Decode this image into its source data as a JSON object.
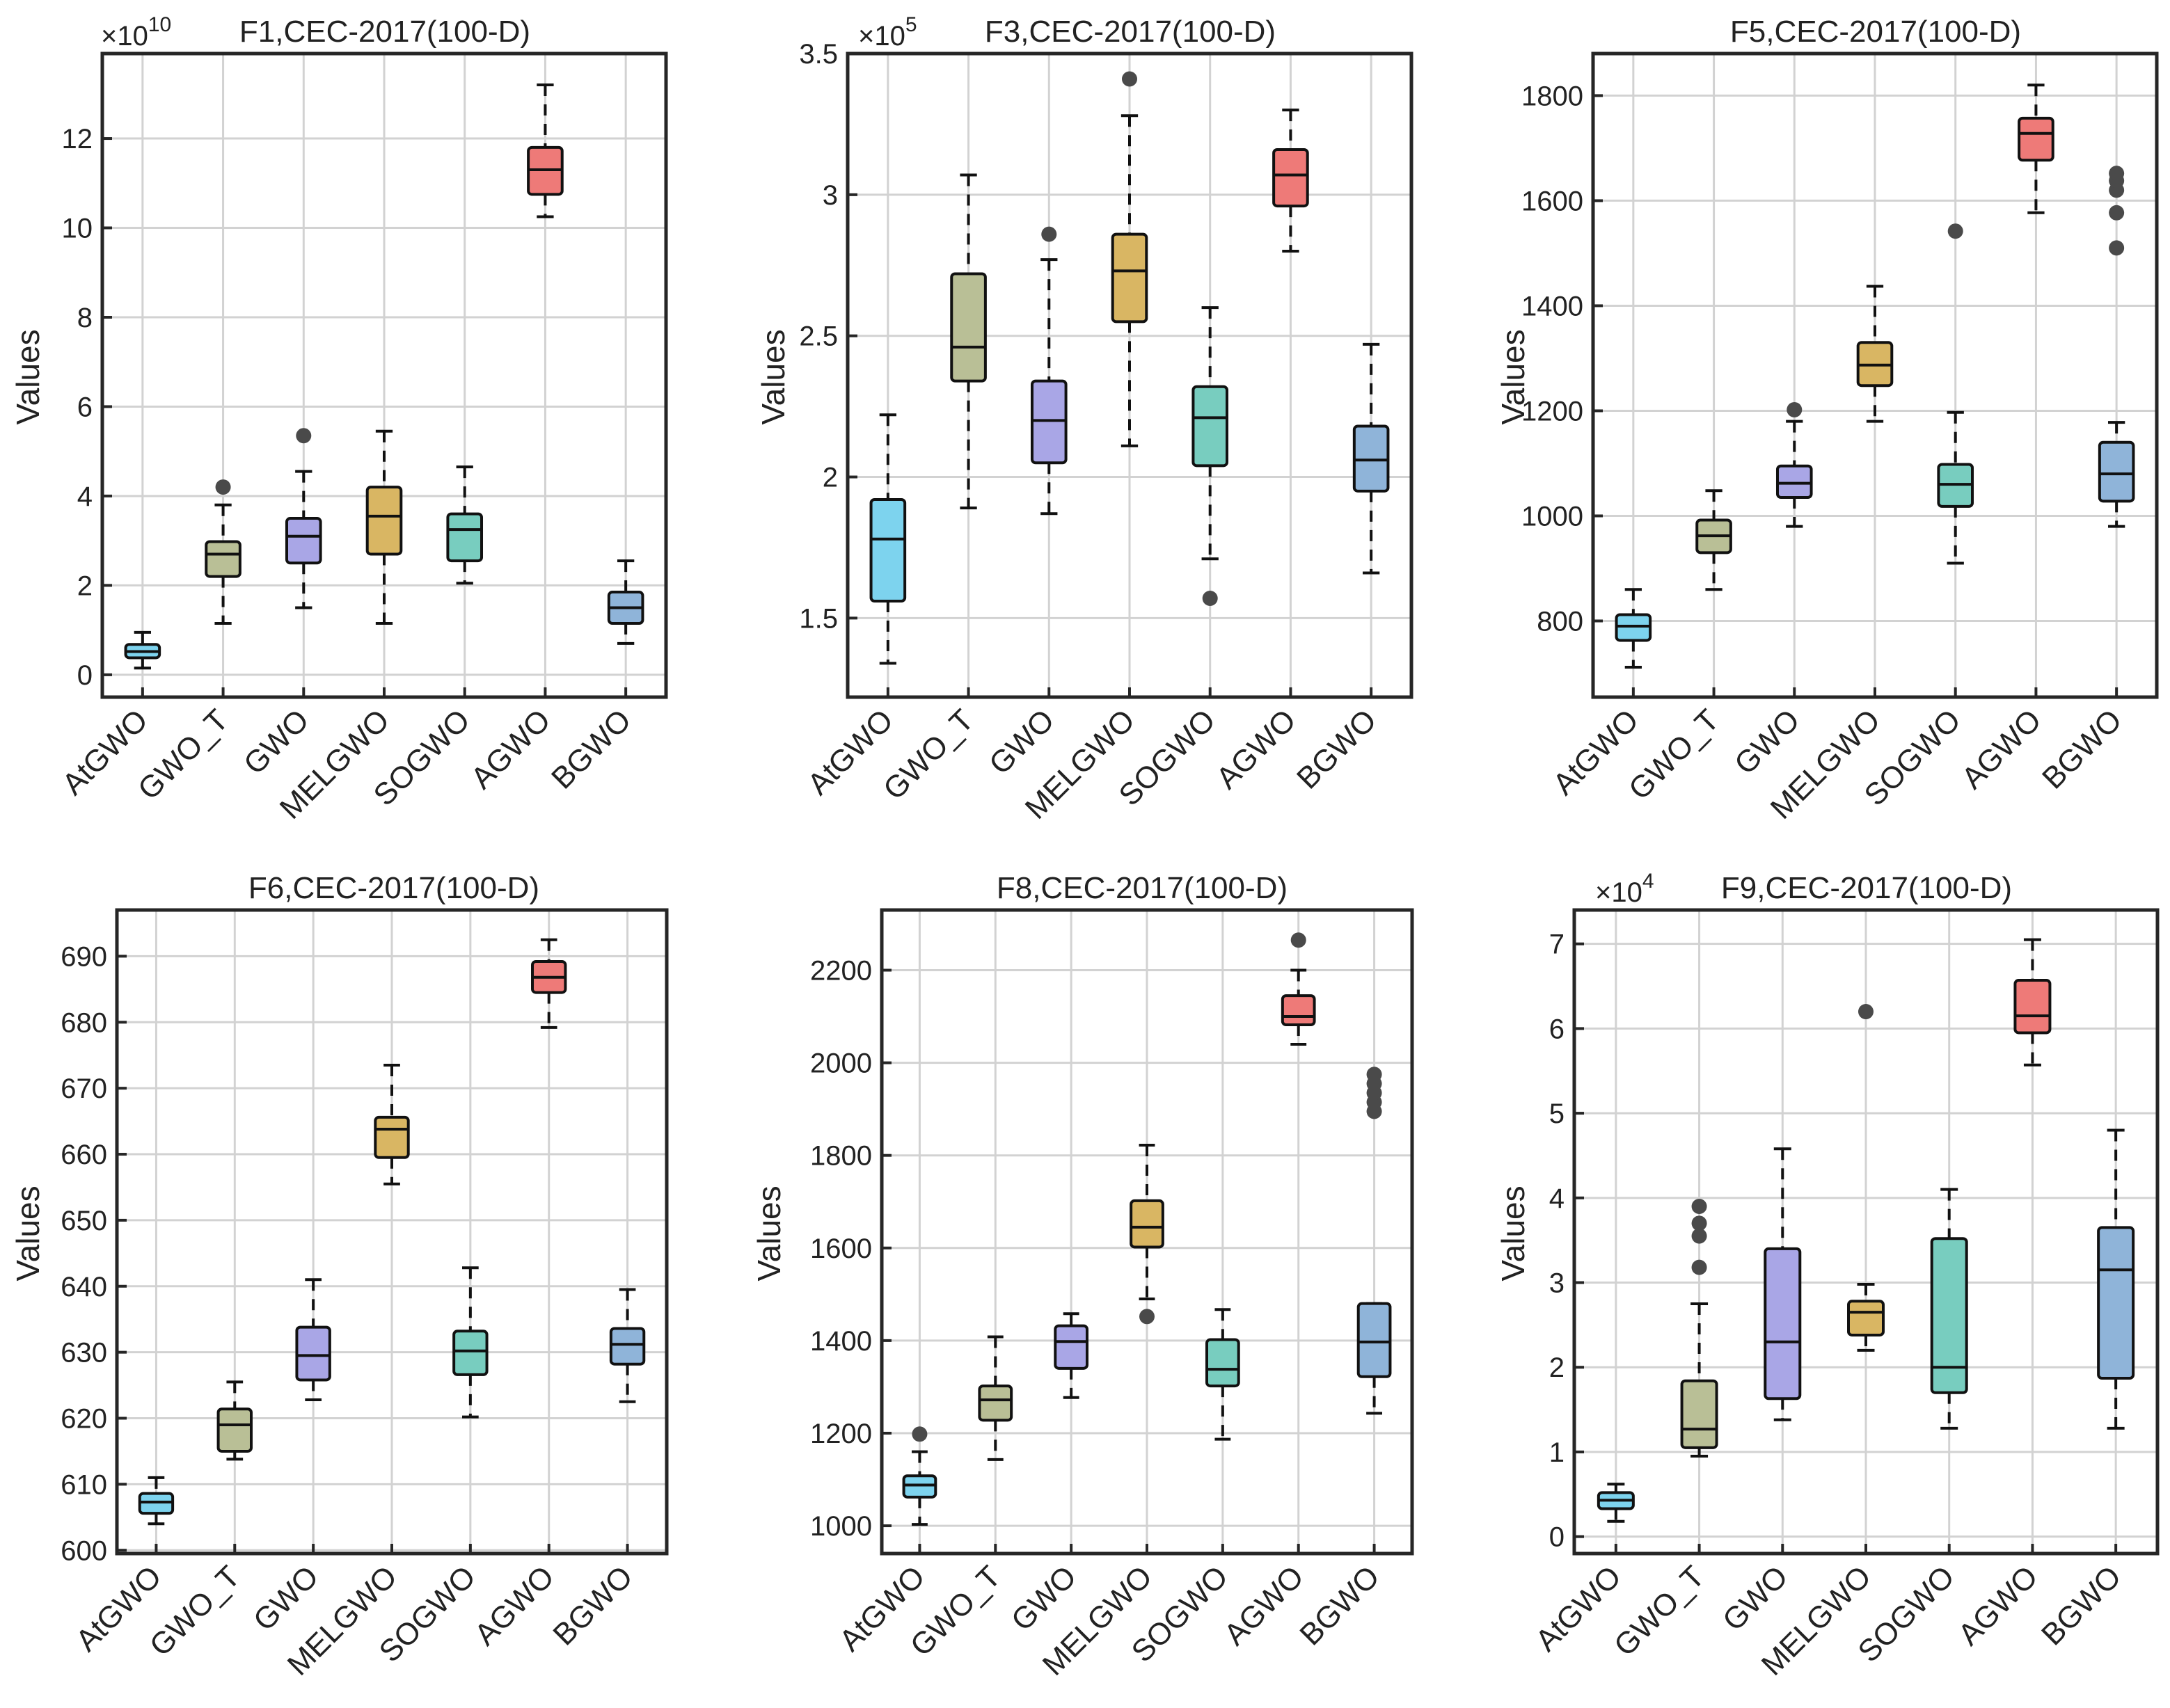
{
  "figure": {
    "categories": [
      "AtGWO",
      "GWO_T",
      "GWO",
      "MELGWO",
      "SOGWO",
      "AGWO",
      "BGWO"
    ],
    "category_colors": [
      "#7dd3ee",
      "#b9bf96",
      "#a9a6e6",
      "#d9b663",
      "#78cdbf",
      "#ee7a78",
      "#8fb4d9"
    ],
    "outlier_color": "#4a4a4a"
  },
  "chart_data": [
    {
      "type": "box",
      "title": "F1,CEC-2017(100-D)",
      "ylabel": "Values",
      "multiplier": "×10",
      "multiplier_exponent": "10",
      "ylim": [
        -0.5,
        13.9
      ],
      "yticks": [
        0,
        2,
        4,
        6,
        8,
        10,
        12
      ],
      "yticklabels": [
        "0",
        "2",
        "4",
        "6",
        "8",
        "10",
        "12"
      ],
      "series": [
        {
          "name": "AtGWO",
          "min": 0.15,
          "q1": 0.38,
          "median": 0.52,
          "q3": 0.68,
          "max": 0.95,
          "outliers": []
        },
        {
          "name": "GWO_T",
          "min": 1.15,
          "q1": 2.2,
          "median": 2.7,
          "q3": 2.98,
          "max": 3.8,
          "outliers": [
            4.2
          ]
        },
        {
          "name": "GWO",
          "min": 1.5,
          "q1": 2.5,
          "median": 3.1,
          "q3": 3.5,
          "max": 4.55,
          "outliers": [
            5.35
          ]
        },
        {
          "name": "MELGWO",
          "min": 1.15,
          "q1": 2.7,
          "median": 3.55,
          "q3": 4.2,
          "max": 5.45,
          "outliers": []
        },
        {
          "name": "SOGWO",
          "min": 2.05,
          "q1": 2.55,
          "median": 3.25,
          "q3": 3.6,
          "max": 4.65,
          "outliers": []
        },
        {
          "name": "AGWO",
          "min": 10.25,
          "q1": 10.75,
          "median": 11.3,
          "q3": 11.8,
          "max": 13.2,
          "outliers": []
        },
        {
          "name": "BGWO",
          "min": 0.7,
          "q1": 1.15,
          "median": 1.5,
          "q3": 1.85,
          "max": 2.55,
          "outliers": []
        }
      ]
    },
    {
      "type": "box",
      "title": "F3,CEC-2017(100-D)",
      "ylabel": "Values",
      "multiplier": "×10",
      "multiplier_exponent": "5",
      "ylim": [
        1.22,
        3.5
      ],
      "yticks": [
        1.5,
        2,
        2.5,
        3,
        3.5
      ],
      "yticklabels": [
        "1.5",
        "2",
        "2.5",
        "3",
        "3.5"
      ],
      "series": [
        {
          "name": "AtGWO",
          "min": 1.34,
          "q1": 1.56,
          "median": 1.78,
          "q3": 1.92,
          "max": 2.22,
          "outliers": []
        },
        {
          "name": "GWO_T",
          "min": 1.89,
          "q1": 2.34,
          "median": 2.46,
          "q3": 2.72,
          "max": 3.07,
          "outliers": []
        },
        {
          "name": "GWO",
          "min": 1.87,
          "q1": 2.05,
          "median": 2.2,
          "q3": 2.34,
          "max": 2.77,
          "outliers": [
            2.86
          ]
        },
        {
          "name": "MELGWO",
          "min": 2.11,
          "q1": 2.55,
          "median": 2.73,
          "q3": 2.86,
          "max": 3.28,
          "outliers": [
            3.41
          ]
        },
        {
          "name": "SOGWO",
          "min": 1.71,
          "q1": 2.04,
          "median": 2.21,
          "q3": 2.32,
          "max": 2.6,
          "outliers": [
            1.57
          ]
        },
        {
          "name": "AGWO",
          "min": 2.8,
          "q1": 2.96,
          "median": 3.07,
          "q3": 3.16,
          "max": 3.3,
          "outliers": []
        },
        {
          "name": "BGWO",
          "min": 1.66,
          "q1": 1.95,
          "median": 2.06,
          "q3": 2.18,
          "max": 2.47,
          "outliers": []
        }
      ]
    },
    {
      "type": "box",
      "title": "F5,CEC-2017(100-D)",
      "ylabel": "Values",
      "multiplier": "",
      "multiplier_exponent": "",
      "ylim": [
        655,
        1880
      ],
      "yticks": [
        800,
        1000,
        1200,
        1400,
        1600,
        1800
      ],
      "yticklabels": [
        "800",
        "1000",
        "1200",
        "1400",
        "1600",
        "1800"
      ],
      "series": [
        {
          "name": "AtGWO",
          "min": 712,
          "q1": 763,
          "median": 790,
          "q3": 812,
          "max": 860,
          "outliers": []
        },
        {
          "name": "GWO_T",
          "min": 860,
          "q1": 930,
          "median": 962,
          "q3": 992,
          "max": 1048,
          "outliers": []
        },
        {
          "name": "GWO",
          "min": 980,
          "q1": 1035,
          "median": 1062,
          "q3": 1095,
          "max": 1180,
          "outliers": [
            1202
          ]
        },
        {
          "name": "MELGWO",
          "min": 1180,
          "q1": 1248,
          "median": 1287,
          "q3": 1330,
          "max": 1437,
          "outliers": []
        },
        {
          "name": "SOGWO",
          "min": 910,
          "q1": 1018,
          "median": 1060,
          "q3": 1098,
          "max": 1197,
          "outliers": [
            1542
          ]
        },
        {
          "name": "AGWO",
          "min": 1577,
          "q1": 1677,
          "median": 1728,
          "q3": 1757,
          "max": 1820,
          "outliers": []
        },
        {
          "name": "BGWO",
          "min": 980,
          "q1": 1028,
          "median": 1080,
          "q3": 1140,
          "max": 1178,
          "outliers": [
            1510,
            1577,
            1620,
            1638,
            1652
          ]
        }
      ]
    },
    {
      "type": "box",
      "title": "F6,CEC-2017(100-D)",
      "ylabel": "Values",
      "multiplier": "",
      "multiplier_exponent": "",
      "ylim": [
        599.5,
        697
      ],
      "yticks": [
        600,
        610,
        620,
        630,
        640,
        650,
        660,
        670,
        680,
        690
      ],
      "yticklabels": [
        "600",
        "610",
        "620",
        "630",
        "640",
        "650",
        "660",
        "670",
        "680",
        "690"
      ],
      "series": [
        {
          "name": "AtGWO",
          "min": 604,
          "q1": 605.6,
          "median": 607.3,
          "q3": 608.6,
          "max": 611,
          "outliers": []
        },
        {
          "name": "GWO_T",
          "min": 613.8,
          "q1": 615,
          "median": 619,
          "q3": 621.4,
          "max": 625.5,
          "outliers": []
        },
        {
          "name": "GWO",
          "min": 622.8,
          "q1": 625.8,
          "median": 629.5,
          "q3": 633.8,
          "max": 641,
          "outliers": []
        },
        {
          "name": "MELGWO",
          "min": 655.5,
          "q1": 659.5,
          "median": 663.8,
          "q3": 665.6,
          "max": 673.5,
          "outliers": []
        },
        {
          "name": "SOGWO",
          "min": 620.2,
          "q1": 626.6,
          "median": 630.2,
          "q3": 633.2,
          "max": 642.8,
          "outliers": []
        },
        {
          "name": "AGWO",
          "min": 679.2,
          "q1": 684.5,
          "median": 686.8,
          "q3": 689.2,
          "max": 692.5,
          "outliers": []
        },
        {
          "name": "BGWO",
          "min": 622.5,
          "q1": 628.2,
          "median": 631.2,
          "q3": 633.6,
          "max": 639.5,
          "outliers": []
        }
      ]
    },
    {
      "type": "box",
      "title": "F8,CEC-2017(100-D)",
      "ylabel": "Values",
      "multiplier": "",
      "multiplier_exponent": "",
      "ylim": [
        940,
        2330
      ],
      "yticks": [
        1000,
        1200,
        1400,
        1600,
        1800,
        2000,
        2200
      ],
      "yticklabels": [
        "1000",
        "1200",
        "1400",
        "1600",
        "1800",
        "2000",
        "2200"
      ],
      "series": [
        {
          "name": "AtGWO",
          "min": 1003,
          "q1": 1062,
          "median": 1088,
          "q3": 1108,
          "max": 1160,
          "outliers": [
            1198
          ]
        },
        {
          "name": "GWO_T",
          "min": 1143,
          "q1": 1228,
          "median": 1272,
          "q3": 1302,
          "max": 1408,
          "outliers": []
        },
        {
          "name": "GWO",
          "min": 1277,
          "q1": 1340,
          "median": 1398,
          "q3": 1432,
          "max": 1458,
          "outliers": []
        },
        {
          "name": "MELGWO",
          "min": 1490,
          "q1": 1602,
          "median": 1645,
          "q3": 1702,
          "max": 1822,
          "outliers": [
            1452
          ]
        },
        {
          "name": "SOGWO",
          "min": 1187,
          "q1": 1302,
          "median": 1338,
          "q3": 1402,
          "max": 1467,
          "outliers": []
        },
        {
          "name": "AGWO",
          "min": 2040,
          "q1": 2082,
          "median": 2100,
          "q3": 2145,
          "max": 2200,
          "outliers": [
            2265
          ]
        },
        {
          "name": "BGWO",
          "min": 1243,
          "q1": 1322,
          "median": 1397,
          "q3": 1480,
          "max": 1480,
          "outliers": [
            1895,
            1915,
            1935,
            1955,
            1975
          ]
        }
      ]
    },
    {
      "type": "box",
      "title": "F9,CEC-2017(100-D)",
      "ylabel": "Values",
      "multiplier": "×10",
      "multiplier_exponent": "4",
      "ylim": [
        -0.2,
        7.4
      ],
      "yticks": [
        0,
        1,
        2,
        3,
        4,
        5,
        6,
        7
      ],
      "yticklabels": [
        "0",
        "1",
        "2",
        "3",
        "4",
        "5",
        "6",
        "7"
      ],
      "series": [
        {
          "name": "AtGWO",
          "min": 0.18,
          "q1": 0.33,
          "median": 0.43,
          "q3": 0.52,
          "max": 0.62,
          "outliers": []
        },
        {
          "name": "GWO_T",
          "min": 0.95,
          "q1": 1.05,
          "median": 1.27,
          "q3": 1.84,
          "max": 2.75,
          "outliers": [
            3.18,
            3.55,
            3.7,
            3.9
          ]
        },
        {
          "name": "GWO",
          "min": 1.38,
          "q1": 1.63,
          "median": 2.3,
          "q3": 3.4,
          "max": 4.58,
          "outliers": []
        },
        {
          "name": "MELGWO",
          "min": 2.2,
          "q1": 2.38,
          "median": 2.65,
          "q3": 2.78,
          "max": 2.98,
          "outliers": [
            6.2
          ]
        },
        {
          "name": "SOGWO",
          "min": 1.28,
          "q1": 1.7,
          "median": 2.0,
          "q3": 3.52,
          "max": 4.1,
          "outliers": []
        },
        {
          "name": "AGWO",
          "min": 5.57,
          "q1": 5.95,
          "median": 6.15,
          "q3": 6.57,
          "max": 7.05,
          "outliers": []
        },
        {
          "name": "BGWO",
          "min": 1.28,
          "q1": 1.87,
          "median": 3.15,
          "q3": 3.65,
          "max": 4.8,
          "outliers": []
        }
      ]
    }
  ]
}
